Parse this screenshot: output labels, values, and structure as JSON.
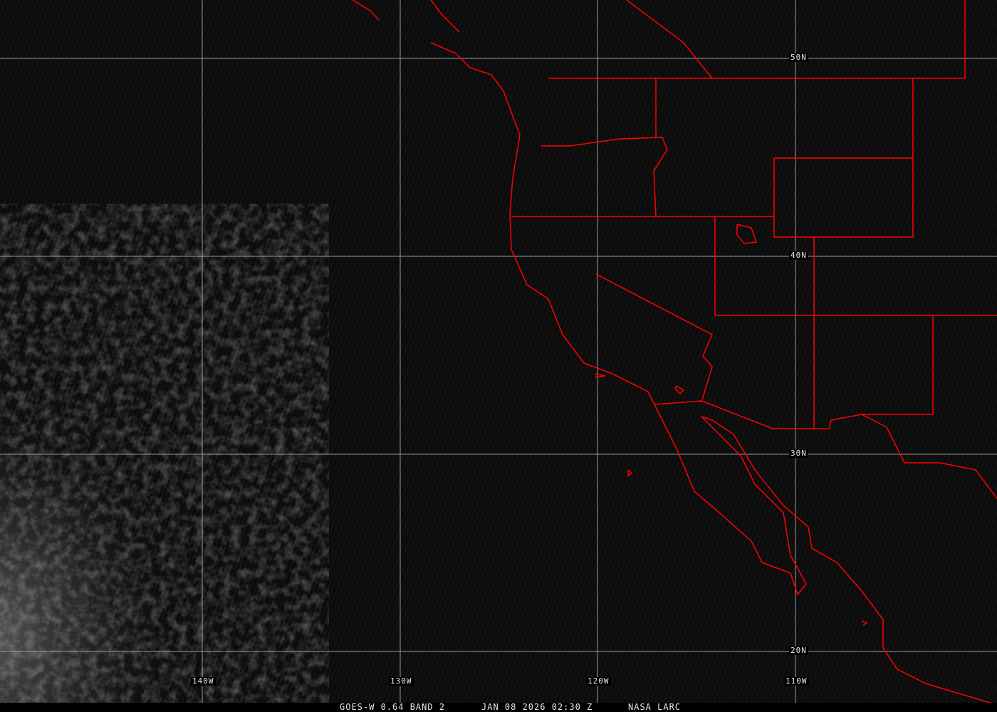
{
  "image": {
    "satellite": "GOES-W",
    "caption_product": "GOES-W 0.64 BAND 2",
    "caption_time": "JAN 08 2026 02:30 Z",
    "caption_source": "NASA LARC",
    "overlay_color": "#ff0000",
    "grid_color": "#9a9a9a"
  },
  "grid": {
    "lat_labels": [
      "50N",
      "40N",
      "30N",
      "20N"
    ],
    "lon_labels": [
      "140W",
      "130W",
      "120W",
      "110W"
    ]
  }
}
